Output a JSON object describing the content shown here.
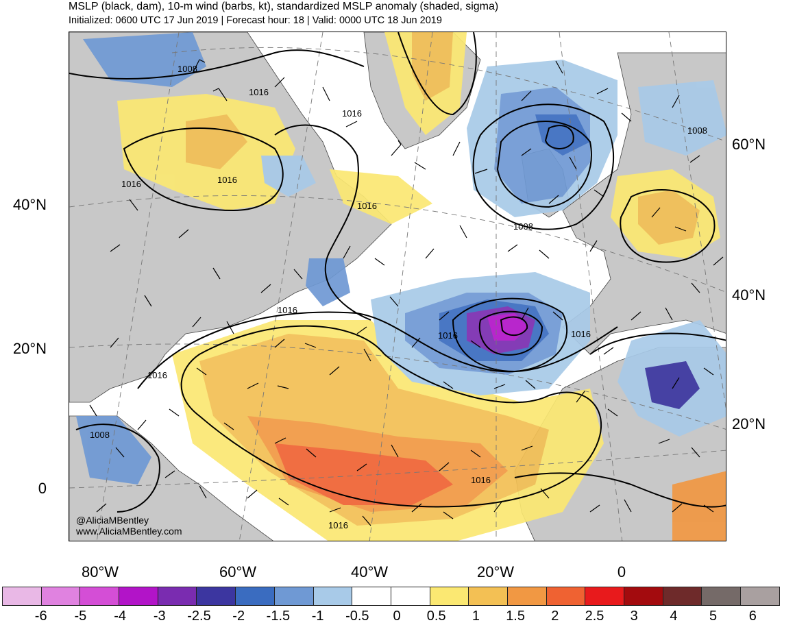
{
  "header": {
    "title": "MSLP (black, dam), 10-m wind (barbs, kt), standardized MSLP anomaly (shaded, sigma)",
    "subtitle": "Initialized: 0600 UTC 17 Jun 2019 | Forecast hour: 18 | Valid: 0000 UTC 18 Jun 2019"
  },
  "map": {
    "credit_handle": "@AliciaMBentley",
    "credit_site": "www.AliciaMBentley.com",
    "isobar_labels": [
      "1008",
      "1016",
      "1016",
      "1016",
      "1016",
      "1016",
      "1008",
      "1008",
      "1016",
      "1016",
      "1016",
      "1016",
      "1008",
      "1016",
      "1016"
    ]
  },
  "axes": {
    "lat_left": [
      "40°N",
      "20°N",
      "0"
    ],
    "lat_right": [
      "60°N",
      "40°N",
      "20°N"
    ],
    "lon_bottom": [
      "80°W",
      "60°W",
      "40°W",
      "20°W",
      "0"
    ]
  },
  "colorbar": {
    "labels": [
      "-6",
      "-5",
      "-4",
      "-3",
      "-2.5",
      "-2",
      "-1.5",
      "-1",
      "-0.5",
      "0",
      "0.5",
      "1",
      "1.5",
      "2",
      "2.5",
      "3",
      "4",
      "5",
      "6"
    ],
    "colors": [
      "#e9b8e6",
      "#e082e0",
      "#d44ed6",
      "#b214c8",
      "#7a2cb0",
      "#3c36a0",
      "#3a6cc0",
      "#6f99d4",
      "#a8cae8",
      "#ffffff",
      "#ffffff",
      "#fbe872",
      "#f3c054",
      "#f19843",
      "#ef6232",
      "#e81a1c",
      "#a30b0e",
      "#6e2a2a",
      "#756a68",
      "#a9a0a0"
    ]
  },
  "colors": {
    "land": "#c8c8c8",
    "ocean": "#ffffff"
  }
}
